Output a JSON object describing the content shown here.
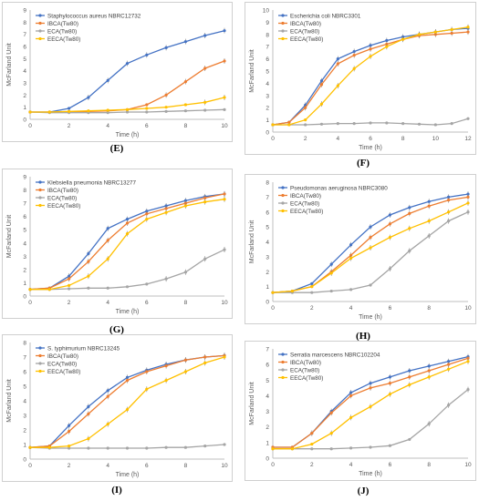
{
  "colors": {
    "blue": "#4472c4",
    "orange": "#ed7d31",
    "gray": "#a5a5a5",
    "yellow": "#ffc000"
  },
  "chart_data": [
    {
      "type": "line",
      "label": "(E)",
      "xlabel": "Time (h)",
      "ylabel": "McFarland Unit",
      "xlim": [
        0,
        10
      ],
      "ylim": [
        0,
        9
      ],
      "xticks": [
        0,
        2,
        4,
        6,
        8,
        10
      ],
      "yticks": [
        0,
        1,
        2,
        3,
        4,
        5,
        6,
        7,
        8,
        9
      ],
      "legend_title": "Staphylococcus aureus NBRC12732",
      "grid": false,
      "series": [
        {
          "name": "",
          "color": "blue",
          "x": [
            0,
            1,
            2,
            3,
            4,
            5,
            6,
            7,
            8,
            9,
            10
          ],
          "y": [
            0.6,
            0.6,
            0.9,
            1.8,
            3.2,
            4.6,
            5.3,
            5.9,
            6.4,
            6.9,
            7.3
          ]
        },
        {
          "name": "IBCA(Tw80)",
          "color": "orange",
          "x": [
            0,
            1,
            2,
            3,
            4,
            5,
            6,
            7,
            8,
            9,
            10
          ],
          "y": [
            0.6,
            0.6,
            0.6,
            0.65,
            0.7,
            0.8,
            1.2,
            2.0,
            3.1,
            4.2,
            4.8
          ]
        },
        {
          "name": "ECA(Tw80)",
          "color": "gray",
          "x": [
            0,
            1,
            2,
            3,
            4,
            5,
            6,
            7,
            8,
            9,
            10
          ],
          "y": [
            0.6,
            0.55,
            0.55,
            0.55,
            0.55,
            0.6,
            0.6,
            0.65,
            0.7,
            0.75,
            0.8
          ]
        },
        {
          "name": "EECA(Tw80)",
          "color": "yellow",
          "x": [
            0,
            1,
            2,
            3,
            4,
            5,
            6,
            7,
            8,
            9,
            10
          ],
          "y": [
            0.6,
            0.6,
            0.65,
            0.7,
            0.75,
            0.8,
            0.9,
            1.0,
            1.2,
            1.4,
            1.8
          ]
        }
      ]
    },
    {
      "type": "line",
      "label": "(F)",
      "xlabel": "Time (h)",
      "ylabel": "McFarland Unit",
      "xlim": [
        0,
        12
      ],
      "ylim": [
        0,
        10
      ],
      "xticks": [
        0,
        2,
        4,
        6,
        8,
        10,
        12
      ],
      "yticks": [
        0,
        1,
        2,
        3,
        4,
        5,
        6,
        7,
        8,
        9,
        10
      ],
      "legend_title": "Escherichia coli NBRC3301",
      "grid": false,
      "series": [
        {
          "name": "",
          "color": "blue",
          "x": [
            0,
            1,
            2,
            3,
            4,
            5,
            6,
            7,
            8,
            9,
            10,
            11,
            12
          ],
          "y": [
            0.6,
            0.8,
            2.2,
            4.2,
            6.0,
            6.6,
            7.1,
            7.5,
            7.8,
            8.0,
            8.2,
            8.4,
            8.5
          ]
        },
        {
          "name": "IBCA(Tw80)",
          "color": "orange",
          "x": [
            0,
            1,
            2,
            3,
            4,
            5,
            6,
            7,
            8,
            9,
            10,
            11,
            12
          ],
          "y": [
            0.6,
            0.8,
            2.0,
            3.9,
            5.6,
            6.3,
            6.8,
            7.2,
            7.6,
            7.9,
            8.0,
            8.1,
            8.2
          ]
        },
        {
          "name": "ECA(Tw80)",
          "color": "gray",
          "x": [
            0,
            1,
            2,
            3,
            4,
            5,
            6,
            7,
            8,
            9,
            10,
            11,
            12
          ],
          "y": [
            0.6,
            0.6,
            0.6,
            0.65,
            0.7,
            0.7,
            0.75,
            0.75,
            0.7,
            0.65,
            0.6,
            0.7,
            1.1
          ]
        },
        {
          "name": "EECA(Tw80)",
          "color": "yellow",
          "x": [
            0,
            1,
            2,
            3,
            4,
            5,
            6,
            7,
            8,
            9,
            10,
            11,
            12
          ],
          "y": [
            0.6,
            0.6,
            1.0,
            2.3,
            3.8,
            5.2,
            6.2,
            7.0,
            7.6,
            8.0,
            8.2,
            8.4,
            8.6
          ]
        }
      ]
    },
    {
      "type": "line",
      "label": "(G)",
      "xlabel": "Time (h)",
      "ylabel": "McFarland Unit",
      "xlim": [
        0,
        10
      ],
      "ylim": [
        0,
        9
      ],
      "xticks": [
        0,
        2,
        4,
        6,
        8,
        10
      ],
      "yticks": [
        0,
        1,
        2,
        3,
        4,
        5,
        6,
        7,
        8,
        9
      ],
      "legend_title": "Klebsiella pneumonia NBRC13277",
      "grid": false,
      "series": [
        {
          "name": "",
          "color": "blue",
          "x": [
            0,
            1,
            2,
            3,
            4,
            5,
            6,
            7,
            8,
            9,
            10
          ],
          "y": [
            0.5,
            0.6,
            1.5,
            3.2,
            5.1,
            5.8,
            6.4,
            6.8,
            7.2,
            7.5,
            7.7
          ]
        },
        {
          "name": "IBCA(Tw80)",
          "color": "orange",
          "x": [
            0,
            1,
            2,
            3,
            4,
            5,
            6,
            7,
            8,
            9,
            10
          ],
          "y": [
            0.5,
            0.6,
            1.3,
            2.6,
            4.2,
            5.5,
            6.2,
            6.6,
            7.0,
            7.4,
            7.7
          ]
        },
        {
          "name": "ECA(Tw80)",
          "color": "gray",
          "x": [
            0,
            1,
            2,
            3,
            4,
            5,
            6,
            7,
            8,
            9,
            10
          ],
          "y": [
            0.5,
            0.5,
            0.55,
            0.6,
            0.6,
            0.7,
            0.9,
            1.3,
            1.8,
            2.8,
            3.5
          ]
        },
        {
          "name": "EECA(Tw80)",
          "color": "yellow",
          "x": [
            0,
            1,
            2,
            3,
            4,
            5,
            6,
            7,
            8,
            9,
            10
          ],
          "y": [
            0.5,
            0.5,
            0.8,
            1.5,
            2.8,
            4.7,
            5.8,
            6.3,
            6.8,
            7.1,
            7.3
          ]
        }
      ]
    },
    {
      "type": "line",
      "label": "(H)",
      "xlabel": "Time (h)",
      "ylabel": "McFarland Unit",
      "xlim": [
        0,
        10
      ],
      "ylim": [
        0,
        8
      ],
      "xticks": [
        0,
        2,
        4,
        6,
        8,
        10
      ],
      "yticks": [
        0,
        1,
        2,
        3,
        4,
        5,
        6,
        7,
        8
      ],
      "legend_title": "Pseudomonas aeruginosa NBRC3080",
      "grid": false,
      "series": [
        {
          "name": "",
          "color": "blue",
          "x": [
            0,
            1,
            2,
            3,
            4,
            5,
            6,
            7,
            8,
            9,
            10
          ],
          "y": [
            0.6,
            0.7,
            1.2,
            2.5,
            3.8,
            5.0,
            5.8,
            6.3,
            6.7,
            7.0,
            7.2
          ]
        },
        {
          "name": "IBCA(Tw80)",
          "color": "orange",
          "x": [
            0,
            1,
            2,
            3,
            4,
            5,
            6,
            7,
            8,
            9,
            10
          ],
          "y": [
            0.6,
            0.7,
            1.0,
            2.0,
            3.1,
            4.3,
            5.2,
            5.9,
            6.4,
            6.8,
            7.0
          ]
        },
        {
          "name": "ECA(Tw80)",
          "color": "gray",
          "x": [
            0,
            1,
            2,
            3,
            4,
            5,
            6,
            7,
            8,
            9,
            10
          ],
          "y": [
            0.6,
            0.6,
            0.6,
            0.7,
            0.8,
            1.1,
            2.2,
            3.4,
            4.4,
            5.4,
            6.0
          ]
        },
        {
          "name": "EECA(Tw80)",
          "color": "yellow",
          "x": [
            0,
            1,
            2,
            3,
            4,
            5,
            6,
            7,
            8,
            9,
            10
          ],
          "y": [
            0.6,
            0.7,
            1.0,
            1.9,
            2.9,
            3.6,
            4.3,
            4.9,
            5.4,
            6.0,
            6.6
          ]
        }
      ]
    },
    {
      "type": "line",
      "label": "(I)",
      "xlabel": "Time (h)",
      "ylabel": "McFarland Unit",
      "xlim": [
        0,
        10
      ],
      "ylim": [
        0,
        8
      ],
      "xticks": [
        0,
        2,
        4,
        6,
        8,
        10
      ],
      "yticks": [
        0,
        1,
        2,
        3,
        4,
        5,
        6,
        7,
        8
      ],
      "legend_title": "S. typhimurium NBRC13245",
      "grid": false,
      "series": [
        {
          "name": "",
          "color": "blue",
          "x": [
            0,
            1,
            2,
            3,
            4,
            5,
            6,
            7,
            8,
            9,
            10
          ],
          "y": [
            0.8,
            0.9,
            2.3,
            3.6,
            4.7,
            5.6,
            6.1,
            6.5,
            6.8,
            7.0,
            7.1
          ]
        },
        {
          "name": "IBCA(Tw80)",
          "color": "orange",
          "x": [
            0,
            1,
            2,
            3,
            4,
            5,
            6,
            7,
            8,
            9,
            10
          ],
          "y": [
            0.8,
            0.9,
            1.9,
            3.1,
            4.3,
            5.4,
            6.0,
            6.4,
            6.8,
            7.0,
            7.1
          ]
        },
        {
          "name": "ECA(Tw80)",
          "color": "gray",
          "x": [
            0,
            1,
            2,
            3,
            4,
            5,
            6,
            7,
            8,
            9,
            10
          ],
          "y": [
            0.8,
            0.75,
            0.75,
            0.75,
            0.75,
            0.75,
            0.75,
            0.8,
            0.8,
            0.9,
            1.0
          ]
        },
        {
          "name": "EECA(Tw80)",
          "color": "yellow",
          "x": [
            0,
            1,
            2,
            3,
            4,
            5,
            6,
            7,
            8,
            9,
            10
          ],
          "y": [
            0.8,
            0.8,
            0.9,
            1.4,
            2.4,
            3.4,
            4.8,
            5.4,
            6.0,
            6.6,
            7.0
          ]
        }
      ]
    },
    {
      "type": "line",
      "label": "(J)",
      "xlabel": "Time (h)",
      "ylabel": "McFarland Unit",
      "xlim": [
        0,
        10
      ],
      "ylim": [
        0,
        7
      ],
      "xticks": [
        0,
        2,
        4,
        6,
        8,
        10
      ],
      "yticks": [
        0,
        1,
        2,
        3,
        4,
        5,
        6,
        7
      ],
      "legend_title": "Serratia marcescens NBRC102204",
      "grid": false,
      "series": [
        {
          "name": "",
          "color": "blue",
          "x": [
            0,
            1,
            2,
            3,
            4,
            5,
            6,
            7,
            8,
            9,
            10
          ],
          "y": [
            0.7,
            0.7,
            1.6,
            3.0,
            4.2,
            4.8,
            5.2,
            5.6,
            5.9,
            6.2,
            6.5
          ]
        },
        {
          "name": "IBCA(Tw80)",
          "color": "orange",
          "x": [
            0,
            1,
            2,
            3,
            4,
            5,
            6,
            7,
            8,
            9,
            10
          ],
          "y": [
            0.7,
            0.7,
            1.6,
            2.9,
            4.0,
            4.5,
            4.8,
            5.2,
            5.6,
            6.0,
            6.4
          ]
        },
        {
          "name": "ECA(Tw80)",
          "color": "gray",
          "x": [
            0,
            1,
            2,
            3,
            4,
            5,
            6,
            7,
            8,
            9,
            10
          ],
          "y": [
            0.6,
            0.6,
            0.6,
            0.6,
            0.65,
            0.7,
            0.8,
            1.2,
            2.2,
            3.4,
            4.4
          ]
        },
        {
          "name": "EECA(Tw80)",
          "color": "yellow",
          "x": [
            0,
            1,
            2,
            3,
            4,
            5,
            6,
            7,
            8,
            9,
            10
          ],
          "y": [
            0.6,
            0.6,
            0.9,
            1.6,
            2.6,
            3.3,
            4.1,
            4.7,
            5.2,
            5.7,
            6.2
          ]
        }
      ]
    }
  ]
}
